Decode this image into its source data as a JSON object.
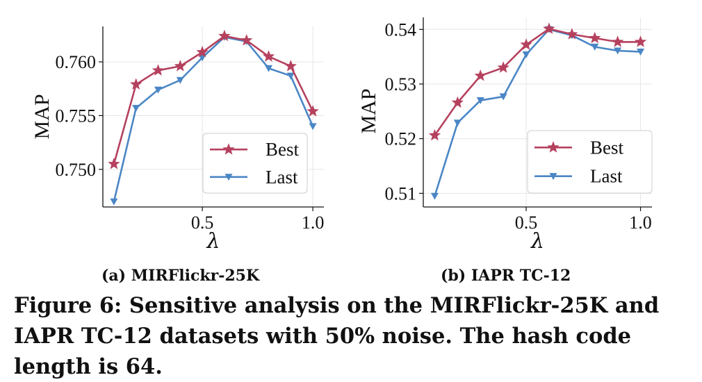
{
  "chart_data": [
    {
      "type": "line",
      "subcaption": "(a) MIRFlickr-25K",
      "xlabel": "λ",
      "ylabel": "MAP",
      "x": [
        0.1,
        0.2,
        0.3,
        0.4,
        0.5,
        0.6,
        0.7,
        0.8,
        0.9,
        1.0
      ],
      "xlim": [
        0.05,
        1.05
      ],
      "ylim": [
        0.7465,
        0.7633
      ],
      "xticks": [
        0.5,
        1.0
      ],
      "xtick_labels": [
        "0.5",
        "1.0"
      ],
      "yticks": [
        0.75,
        0.755,
        0.76
      ],
      "ytick_labels": [
        "0.750",
        "0.755",
        "0.760"
      ],
      "grid": true,
      "legend_position": "lower-right",
      "series": [
        {
          "name": "Best",
          "marker": "star",
          "color": "#b5415e",
          "values": [
            0.7505,
            0.7579,
            0.7592,
            0.7596,
            0.7609,
            0.7624,
            0.762,
            0.7605,
            0.7596,
            0.7554
          ]
        },
        {
          "name": "Last",
          "marker": "triangle-down",
          "color": "#4a86c5",
          "values": [
            0.747,
            0.7557,
            0.7574,
            0.7583,
            0.7604,
            0.7623,
            0.7619,
            0.7594,
            0.7587,
            0.754
          ]
        }
      ]
    },
    {
      "type": "line",
      "subcaption": "(b) IAPR TC-12",
      "xlabel": "λ",
      "ylabel": "MAP",
      "x": [
        0.1,
        0.2,
        0.3,
        0.4,
        0.5,
        0.6,
        0.7,
        0.8,
        0.9,
        1.0
      ],
      "xlim": [
        0.05,
        1.05
      ],
      "ylim": [
        0.5075,
        0.5422
      ],
      "xticks": [
        0.5,
        1.0
      ],
      "xtick_labels": [
        "0.5",
        "1.0"
      ],
      "yticks": [
        0.51,
        0.52,
        0.53,
        0.54
      ],
      "ytick_labels": [
        "0.51",
        "0.52",
        "0.53",
        "0.54"
      ],
      "grid": true,
      "legend_position": "lower-right",
      "series": [
        {
          "name": "Best",
          "marker": "star",
          "color": "#b5415e",
          "values": [
            0.5206,
            0.5266,
            0.5315,
            0.533,
            0.5372,
            0.5401,
            0.5391,
            0.5384,
            0.5377,
            0.5377
          ]
        },
        {
          "name": "Last",
          "marker": "triangle-down",
          "color": "#4a86c5",
          "values": [
            0.5095,
            0.5229,
            0.527,
            0.5277,
            0.5354,
            0.54,
            0.5389,
            0.5368,
            0.5361,
            0.5359
          ]
        }
      ]
    }
  ],
  "caption": "Figure 6: Sensitive analysis on the MIRFlickr-25K and IAPR TC-12 datasets with 50% noise. The hash code length is 64."
}
